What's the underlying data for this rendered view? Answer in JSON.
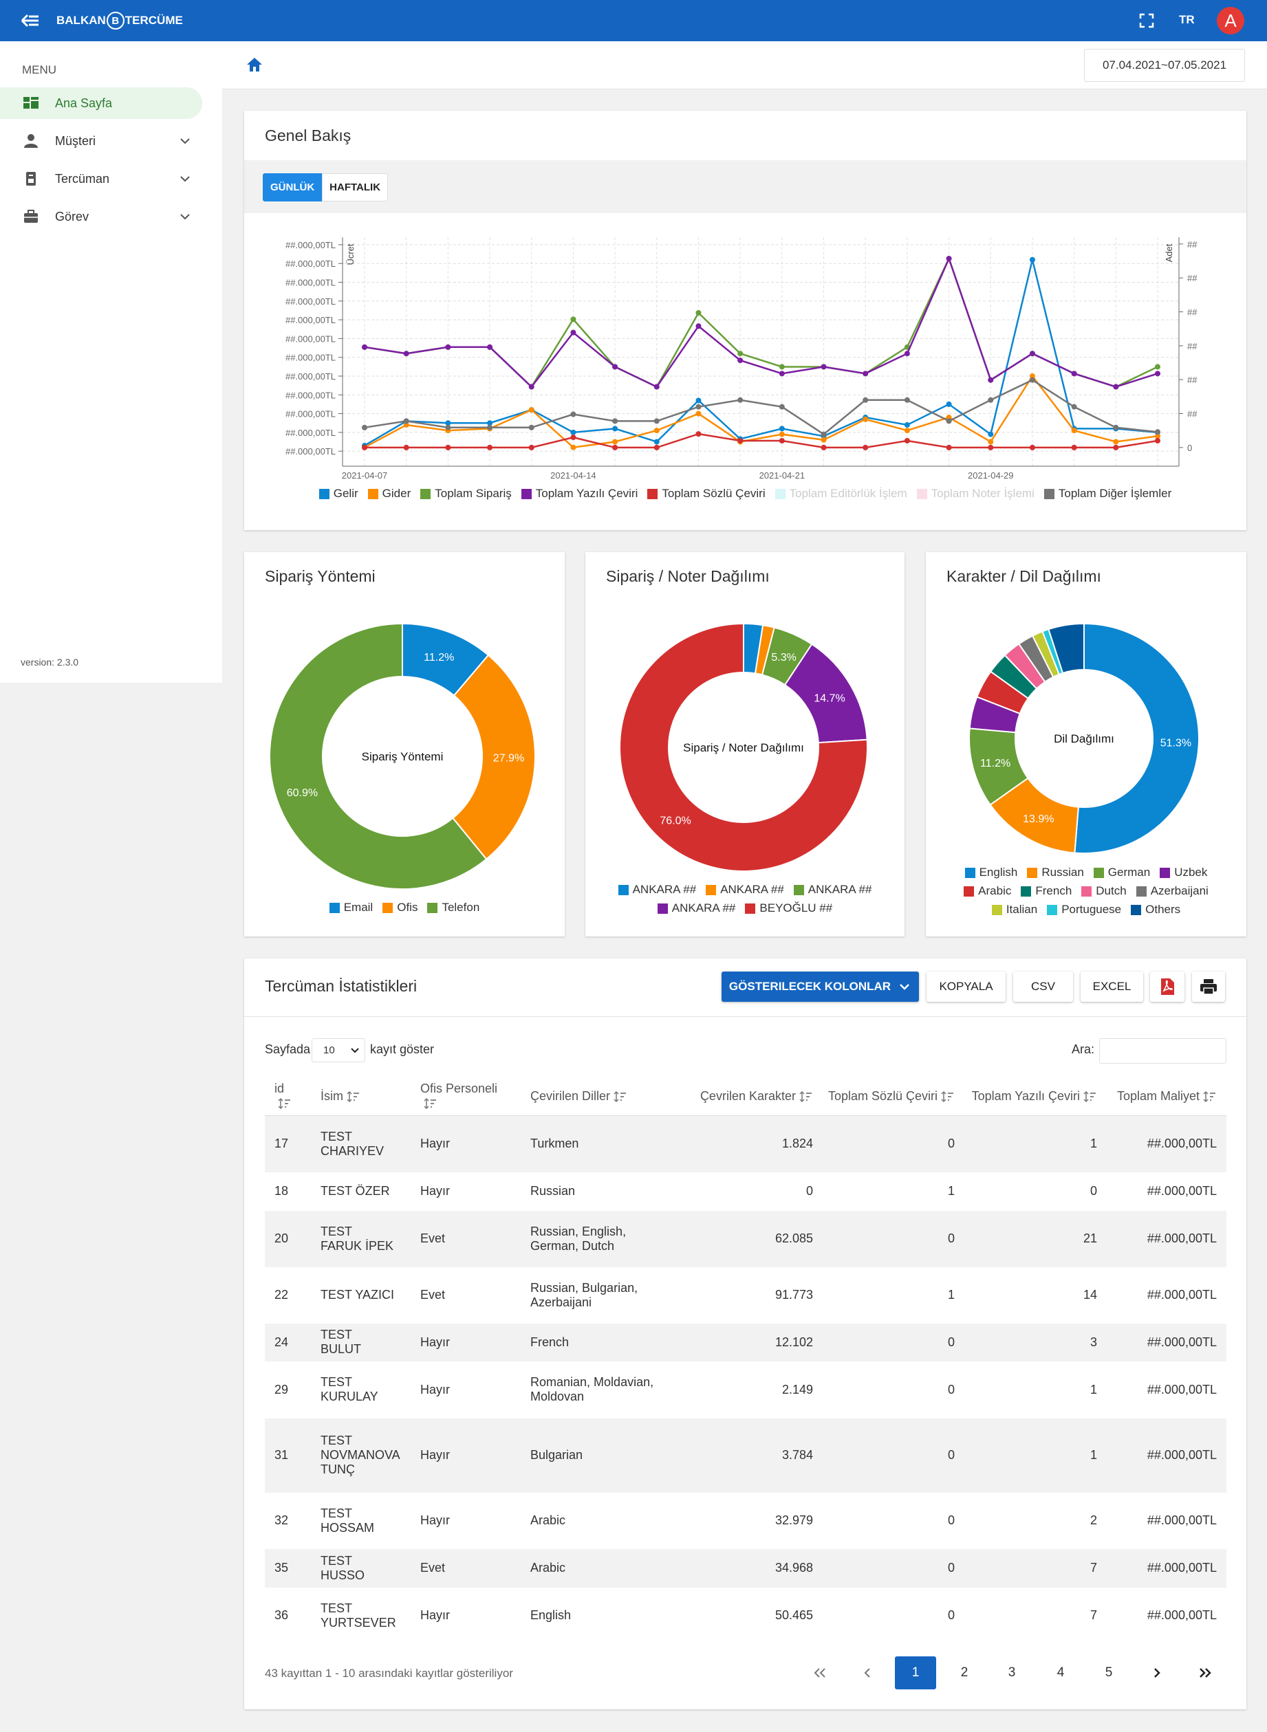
{
  "header": {
    "brand_left": "BALKAN",
    "logo_letter": "B",
    "brand_right": "TERCÜME",
    "language": "TR",
    "avatar": "A"
  },
  "sidebar": {
    "menu_title": "MENU",
    "items": [
      {
        "label": "Ana Sayfa",
        "active": true,
        "expandable": false
      },
      {
        "label": "Müşteri",
        "active": false,
        "expandable": true
      },
      {
        "label": "Tercüman",
        "active": false,
        "expandable": true
      },
      {
        "label": "Görev",
        "active": false,
        "expandable": true
      }
    ],
    "version": "version: 2.3.0"
  },
  "toolbar": {
    "date_range": "07.04.2021~07.05.2021"
  },
  "overview": {
    "title": "Genel Bakış",
    "tabs": [
      {
        "label": "GÜNLÜK",
        "active": true
      },
      {
        "label": "HAFTALIK",
        "active": false
      }
    ],
    "chart_data": {
      "type": "line",
      "ylabel": "Ücret",
      "y2label": "Adet",
      "categories": [
        "2021-04-07",
        null,
        null,
        null,
        null,
        "2021-04-14",
        null,
        null,
        null,
        null,
        "2021-04-21",
        null,
        null,
        null,
        null,
        "2021-04-29",
        null,
        null,
        null,
        null
      ],
      "ylim": [
        -0.8,
        11.4
      ],
      "yticks": [
        {
          "value": 0,
          "label": "##.000,00TL"
        },
        {
          "value": 1,
          "label": "##.000,00TL"
        },
        {
          "value": 2,
          "label": "##.000,00TL"
        },
        {
          "value": 3,
          "label": "##.000,00TL"
        },
        {
          "value": 4,
          "label": "##.000,00TL"
        },
        {
          "value": 5,
          "label": "##.000,00TL"
        },
        {
          "value": 6,
          "label": "##.000,00TL"
        },
        {
          "value": 7,
          "label": "##.000,00TL"
        },
        {
          "value": 8,
          "label": "##.000,00TL"
        },
        {
          "value": 9,
          "label": "##.000,00TL"
        },
        {
          "value": 10,
          "label": "##.000,00TL"
        },
        {
          "value": 11,
          "label": "##.000,00TL"
        }
      ],
      "y2lim": [
        -0.55,
        6.2
      ],
      "y2ticks": [
        0,
        {
          "value": 1,
          "label": "##"
        },
        {
          "value": 2,
          "label": "##"
        },
        {
          "value": 3,
          "label": "##"
        },
        {
          "value": 4,
          "label": "##"
        },
        {
          "value": 5,
          "label": "##"
        },
        {
          "value": 6,
          "label": "##"
        }
      ],
      "grid": true,
      "legend": "bottom",
      "series": [
        {
          "name": "Gelir",
          "color": "#0b86d1",
          "values": [
            0.3,
            1.6,
            1.5,
            1.5,
            2.2,
            1.0,
            1.2,
            0.5,
            2.7,
            0.65,
            1.2,
            0.8,
            1.8,
            1.4,
            2.5,
            0.9,
            10.2,
            1.2,
            1.2,
            1.0
          ]
        },
        {
          "name": "Gider",
          "color": "#fb8c00",
          "values": [
            0.2,
            1.4,
            1.1,
            1.2,
            2.2,
            0.2,
            0.5,
            1.1,
            2.0,
            0.5,
            0.9,
            0.6,
            1.7,
            1.1,
            1.8,
            0.5,
            4.0,
            1.1,
            0.5,
            0.8
          ]
        },
        {
          "name": "Toplam Sipariş",
          "color": "#689f38",
          "axis": "y2",
          "values": [
            2.96,
            2.77,
            2.96,
            2.96,
            1.79,
            3.78,
            2.38,
            1.79,
            3.97,
            2.77,
            2.38,
            2.38,
            2.18,
            2.96,
            5.57,
            1.99,
            2.77,
            2.18,
            1.79,
            2.38
          ]
        },
        {
          "name": "Toplam Yazılı Çeviri",
          "color": "#7b1fa2",
          "axis": "y2",
          "values": [
            2.96,
            2.77,
            2.96,
            2.96,
            1.79,
            3.39,
            2.38,
            1.79,
            3.58,
            2.57,
            2.18,
            2.38,
            2.18,
            2.77,
            5.57,
            1.99,
            2.77,
            2.18,
            1.79,
            2.18
          ]
        },
        {
          "name": "Toplam Sözlü Çeviri",
          "color": "#d32f2f",
          "axis": "y2",
          "values": [
            0,
            0,
            0,
            0,
            0,
            0.3,
            0,
            0,
            0.4,
            0.2,
            0.2,
            0,
            0,
            0.2,
            0,
            0,
            0,
            0,
            0,
            0.2
          ]
        },
        {
          "name": "Toplam Editörlük İşlem",
          "color": "#b2ebf2",
          "hidden": true
        },
        {
          "name": "Toplam Noter İşlemi",
          "color": "#f8bbd0",
          "hidden": true
        },
        {
          "name": "Toplam Diğer İşlemler",
          "color": "#757575",
          "axis": "y2",
          "values": [
            0.59,
            0.78,
            0.59,
            0.59,
            0.59,
            0.98,
            0.78,
            0.78,
            1.2,
            1.4,
            1.2,
            0.39,
            1.4,
            1.4,
            0.78,
            1.4,
            1.99,
            1.2,
            0.59,
            0.46
          ]
        }
      ]
    }
  },
  "pies": [
    {
      "title": "Sipariş Yöntemi",
      "chart_data": {
        "type": "doughnut",
        "center_label": "Sipariş Yöntemi",
        "categories": [
          "Email",
          "Ofis",
          "Telefon"
        ],
        "values": [
          11.2,
          27.9,
          60.9
        ],
        "value_labels": [
          "11.2%",
          "27.9%",
          "60.9%"
        ],
        "colors": [
          "#0b86d1",
          "#fb8c00",
          "#689f38"
        ],
        "legend": "bottom"
      }
    },
    {
      "title": "Sipariş / Noter Dağılımı",
      "chart_data": {
        "type": "doughnut",
        "center_label": "Sipariş / Noter Dağılımı",
        "categories": [
          "ANKARA ##",
          "ANKARA ##",
          "ANKARA ##",
          "ANKARA ##",
          "BEYOĞLU ##"
        ],
        "values": [
          2.5,
          1.5,
          5.3,
          14.7,
          76.0
        ],
        "value_labels": [
          null,
          null,
          "5.3%",
          "14.7%",
          "76.0%"
        ],
        "colors": [
          "#0b86d1",
          "#fb8c00",
          "#689f38",
          "#7b1fa2",
          "#d32f2f"
        ],
        "legend": "bottom"
      }
    },
    {
      "title": "Karakter / Dil Dağılımı",
      "chart_data": {
        "type": "doughnut",
        "center_label": "Dil Dağılımı",
        "categories": [
          "English",
          "Russian",
          "German",
          "Uzbek",
          "Arabic",
          "French",
          "Dutch",
          "Azerbaijani",
          "Italian",
          "Portuguese",
          "Others"
        ],
        "values": [
          51.3,
          13.9,
          11.2,
          4.5,
          4.0,
          3.0,
          2.5,
          2.2,
          1.5,
          0.9,
          5.0
        ],
        "value_labels": [
          "51.3%",
          "13.9%",
          "11.2%",
          null,
          null,
          null,
          null,
          null,
          null,
          null,
          null
        ],
        "colors": [
          "#0b86d1",
          "#fb8c00",
          "#689f38",
          "#7b1fa2",
          "#d32f2f",
          "#00796b",
          "#f06292",
          "#757575",
          "#c0ca33",
          "#26c6da",
          "#01579b"
        ],
        "legend": "bottom"
      }
    }
  ],
  "stats": {
    "title": "Tercüman İstatistikleri",
    "buttons": {
      "columns": "GÖSTERILECEK KOLONLAR",
      "copy": "KOPYALA",
      "csv": "CSV",
      "excel": "EXCEL"
    },
    "length_prefix": "Sayfada",
    "page_length": "10",
    "length_suffix": "kayıt göster",
    "search_label": "Ara:",
    "columns": [
      "id",
      "İsim",
      "Ofis Personeli",
      "Çevirilen Diller",
      "Çevrilen Karakter",
      "Toplam Sözlü Çeviri",
      "Toplam Yazılı Çeviri",
      "Toplam Maliyet"
    ],
    "rows": [
      [
        "17",
        "TEST CHARIYEV",
        "Hayır",
        "Turkmen",
        "1.824",
        "0",
        "1",
        "##.000,00TL"
      ],
      [
        "18",
        "TEST ÖZER",
        "Hayır",
        "Russian",
        "0",
        "1",
        "0",
        "##.000,00TL"
      ],
      [
        "20",
        "TEST FARUK İPEK",
        "Evet",
        "Russian, English, German, Dutch",
        "62.085",
        "0",
        "21",
        "##.000,00TL"
      ],
      [
        "22",
        "TEST YAZICI",
        "Evet",
        "Russian, Bulgarian, Azerbaijani",
        "91.773",
        "1",
        "14",
        "##.000,00TL"
      ],
      [
        "24",
        "TEST BULUT",
        "Hayır",
        "French",
        "12.102",
        "0",
        "3",
        "##.000,00TL"
      ],
      [
        "29",
        "TEST KURULAY",
        "Hayır",
        "Romanian, Moldavian, Moldovan",
        "2.149",
        "0",
        "1",
        "##.000,00TL"
      ],
      [
        "31",
        "TEST NOVMANOVA TUNÇ",
        "Hayır",
        "Bulgarian",
        "3.784",
        "0",
        "1",
        "##.000,00TL"
      ],
      [
        "32",
        "TEST HOSSAM",
        "Hayır",
        "Arabic",
        "32.979",
        "0",
        "2",
        "##.000,00TL"
      ],
      [
        "35",
        "TEST HUSSO",
        "Evet",
        "Arabic",
        "34.968",
        "0",
        "7",
        "##.000,00TL"
      ],
      [
        "36",
        "TEST YURTSEVER",
        "Hayır",
        "English",
        "50.465",
        "0",
        "7",
        "##.000,00TL"
      ]
    ],
    "info": "43 kayıttan 1 - 10 arasındaki kayıtlar gösteriliyor",
    "pages": [
      "1",
      "2",
      "3",
      "4",
      "5"
    ],
    "active_page": "1"
  }
}
